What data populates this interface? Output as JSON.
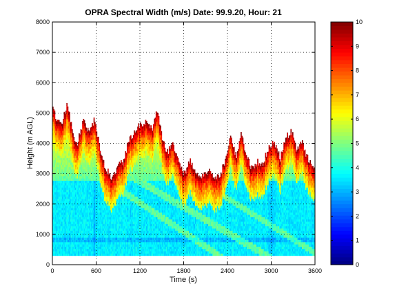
{
  "chart_data": {
    "type": "heatmap",
    "title": "OPRA Spectral Width (m/s)  Date: 99.9.20, Hour: 21",
    "xlabel": "Time (s)",
    "ylabel": "Height (m AGL)",
    "xlim": [
      0,
      3600
    ],
    "ylim": [
      0,
      8000
    ],
    "xticks": [
      0,
      600,
      1200,
      1800,
      2400,
      3000,
      3600
    ],
    "yticks": [
      0,
      1000,
      2000,
      3000,
      4000,
      5000,
      6000,
      7000,
      8000
    ],
    "grid": true,
    "colormap": "jet",
    "colorbar": {
      "range": [
        0,
        10
      ],
      "ticks": [
        0,
        1,
        2,
        3,
        4,
        5,
        6,
        7,
        8,
        9,
        10
      ],
      "placement": "right"
    },
    "data_bottom_height": 300,
    "echo_top_height": [
      {
        "t": 0,
        "h": 5100
      },
      {
        "t": 60,
        "h": 4750
      },
      {
        "t": 120,
        "h": 4650
      },
      {
        "t": 190,
        "h": 5250
      },
      {
        "t": 250,
        "h": 4700
      },
      {
        "t": 320,
        "h": 3900
      },
      {
        "t": 420,
        "h": 4750
      },
      {
        "t": 500,
        "h": 4300
      },
      {
        "t": 570,
        "h": 4850
      },
      {
        "t": 640,
        "h": 3900
      },
      {
        "t": 720,
        "h": 3200
      },
      {
        "t": 800,
        "h": 2850
      },
      {
        "t": 880,
        "h": 3200
      },
      {
        "t": 960,
        "h": 3400
      },
      {
        "t": 1040,
        "h": 4050
      },
      {
        "t": 1120,
        "h": 4400
      },
      {
        "t": 1200,
        "h": 4600
      },
      {
        "t": 1280,
        "h": 4700
      },
      {
        "t": 1360,
        "h": 4450
      },
      {
        "t": 1430,
        "h": 5100
      },
      {
        "t": 1500,
        "h": 4150
      },
      {
        "t": 1570,
        "h": 3700
      },
      {
        "t": 1640,
        "h": 3950
      },
      {
        "t": 1720,
        "h": 3400
      },
      {
        "t": 1800,
        "h": 3000
      },
      {
        "t": 1880,
        "h": 3400
      },
      {
        "t": 1960,
        "h": 3000
      },
      {
        "t": 2040,
        "h": 2900
      },
      {
        "t": 2120,
        "h": 3100
      },
      {
        "t": 2200,
        "h": 2950
      },
      {
        "t": 2280,
        "h": 2850
      },
      {
        "t": 2360,
        "h": 3400
      },
      {
        "t": 2440,
        "h": 4300
      },
      {
        "t": 2520,
        "h": 3500
      },
      {
        "t": 2580,
        "h": 4400
      },
      {
        "t": 2650,
        "h": 3600
      },
      {
        "t": 2720,
        "h": 3200
      },
      {
        "t": 2800,
        "h": 3400
      },
      {
        "t": 2880,
        "h": 3300
      },
      {
        "t": 2960,
        "h": 3900
      },
      {
        "t": 3040,
        "h": 4000
      },
      {
        "t": 3120,
        "h": 3500
      },
      {
        "t": 3200,
        "h": 4200
      },
      {
        "t": 3280,
        "h": 4400
      },
      {
        "t": 3340,
        "h": 3800
      },
      {
        "t": 3420,
        "h": 4000
      },
      {
        "t": 3480,
        "h": 3600
      },
      {
        "t": 3560,
        "h": 3200
      },
      {
        "t": 3600,
        "h": 3100
      }
    ]
  }
}
